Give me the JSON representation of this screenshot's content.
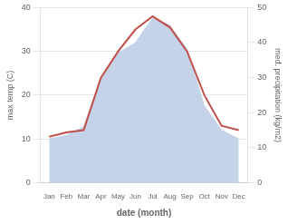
{
  "chart_data": {
    "type": "line",
    "categories": [
      "Jan",
      "Feb",
      "Mar",
      "Apr",
      "May",
      "Jun",
      "Jul",
      "Aug",
      "Sep",
      "Oct",
      "Nov",
      "Dec"
    ],
    "series": [
      {
        "type": "area",
        "color": "#c5d3e8",
        "axis": "y2",
        "values": [
          12.5,
          13.5,
          16.0,
          30.0,
          37.0,
          40.0,
          47.0,
          45.0,
          38.0,
          22.0,
          15.0,
          12.5
        ]
      },
      {
        "type": "line",
        "color": "#c0504d",
        "values": [
          10.5,
          11.5,
          12.0,
          24.0,
          30.0,
          35.0,
          38.0,
          35.5,
          30.0,
          20.0,
          13.0,
          12.0
        ]
      }
    ],
    "xlabel": "date (month)",
    "ylabel": "max temp (C)",
    "y2label": "med. precipitation (kg/m2)",
    "ylim": [
      0,
      40
    ],
    "yticks": [
      0,
      10,
      20,
      30,
      40
    ],
    "y2lim": [
      0,
      50
    ],
    "y2ticks": [
      0,
      10,
      20,
      30,
      40,
      50
    ],
    "grid": true
  }
}
